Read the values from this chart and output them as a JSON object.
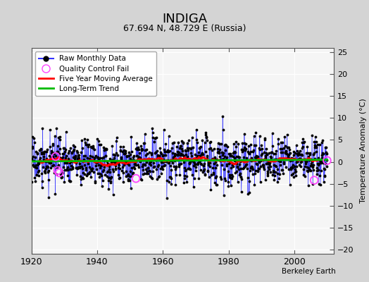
{
  "title": "INDIGA",
  "subtitle": "67.694 N, 48.729 E (Russia)",
  "ylabel": "Temperature Anomaly (°C)",
  "xlabel_start": 1920,
  "xlabel_end": 2012,
  "ylim": [
    -21,
    26
  ],
  "yticks": [
    -20,
    -15,
    -10,
    -5,
    0,
    5,
    10,
    15,
    20,
    25
  ],
  "xticks": [
    1920,
    1940,
    1960,
    1980,
    2000
  ],
  "plot_bg_color": "#f0f0f0",
  "fig_bg_color": "#e0e0e0",
  "line_color": "#3333ff",
  "ma_color": "#ff0000",
  "trend_color": "#00bb00",
  "dot_color": "#000000",
  "qc_color": "#ff44ff",
  "watermark": "Berkeley Earth",
  "seed": 17,
  "n_months": 1080,
  "start_year": 1920,
  "trend_slope": 0.006
}
